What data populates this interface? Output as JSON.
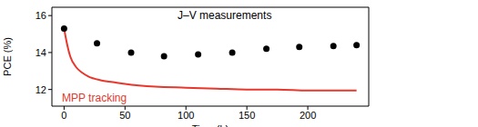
{
  "chart_data": {
    "type": "line",
    "x_label": "Time (h)",
    "y_label": "PCE (%)",
    "xlim": [
      -10,
      250
    ],
    "xticks": [
      0,
      50,
      100,
      150,
      200
    ],
    "ylim": [
      11.1,
      16.45
    ],
    "yticks": [
      12,
      14,
      16
    ],
    "grid": false,
    "series": [
      {
        "name": "J–V measurements",
        "type": "scatter",
        "color": "#000000",
        "marker": "circle",
        "x": [
          0,
          27,
          55,
          82,
          110,
          138,
          166,
          193,
          221,
          240
        ],
        "values": [
          15.3,
          14.5,
          14.0,
          13.8,
          13.9,
          14.0,
          14.2,
          14.3,
          14.35,
          14.4
        ]
      },
      {
        "name": "MPP tracking",
        "type": "line",
        "color": "#e8372c",
        "line_style": "solid",
        "x": [
          0,
          2,
          5,
          10,
          15,
          20,
          30,
          40,
          50,
          75,
          100,
          125,
          150,
          175,
          200,
          240
        ],
        "values": [
          15.3,
          14.6,
          13.8,
          13.2,
          12.9,
          12.7,
          12.5,
          12.4,
          12.3,
          12.15,
          12.1,
          12.05,
          12.0,
          12.0,
          11.95,
          11.95
        ]
      }
    ]
  }
}
